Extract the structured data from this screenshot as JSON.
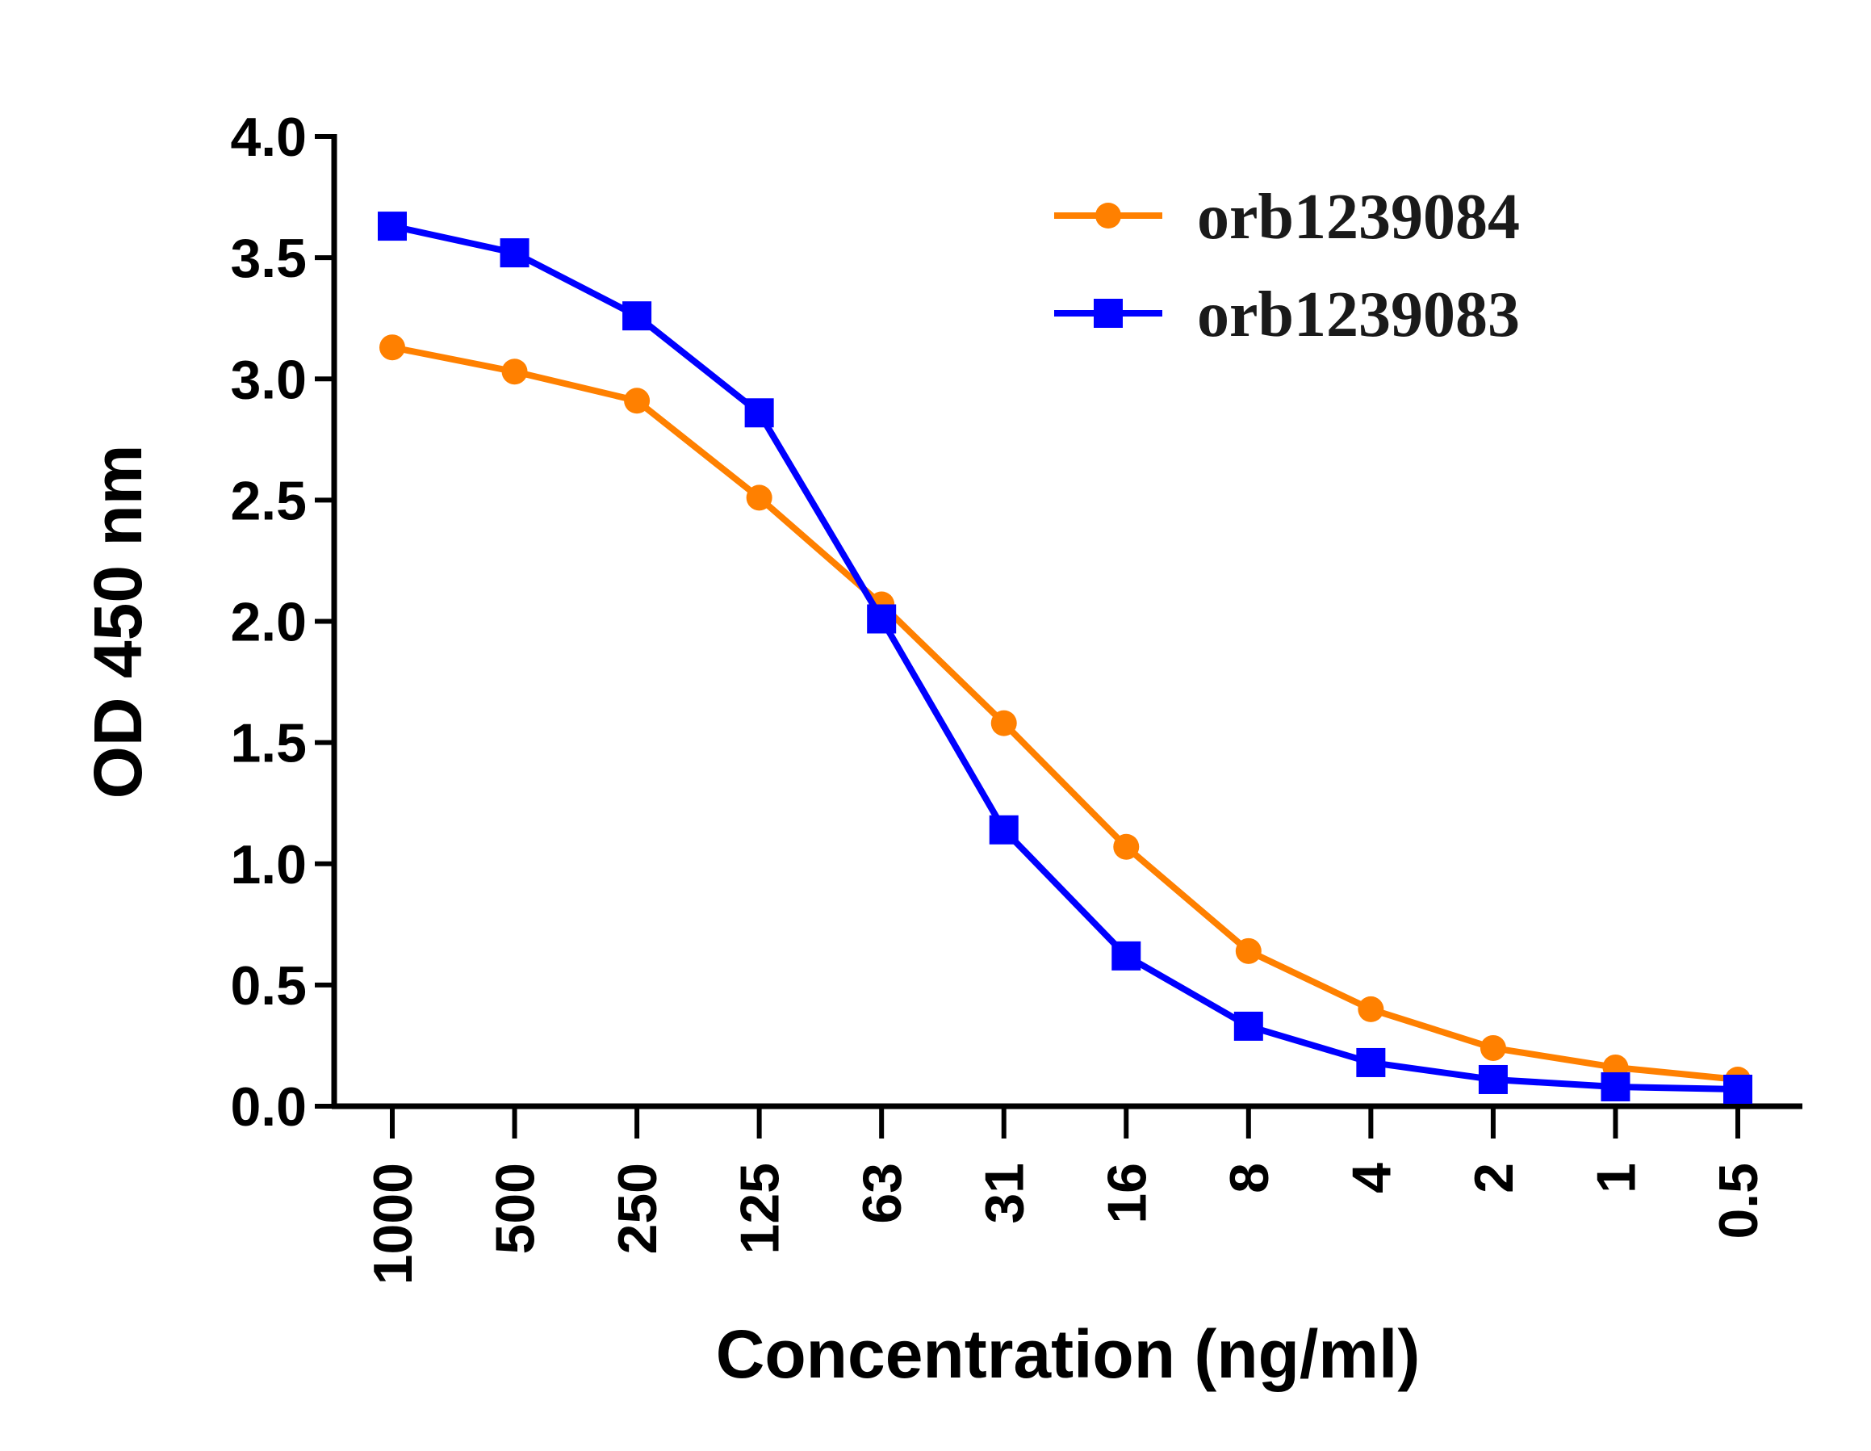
{
  "chart_data": {
    "type": "line",
    "xlabel": "Concentration (ng/ml)",
    "ylabel": "OD 450 nm",
    "categories": [
      "1000",
      "500",
      "250",
      "125",
      "63",
      "31",
      "16",
      "8",
      "4",
      "2",
      "1",
      "0.5"
    ],
    "ylim": [
      0,
      4.0
    ],
    "yticks": [
      "0.0",
      "0.5",
      "1.0",
      "1.5",
      "2.0",
      "2.5",
      "3.0",
      "3.5",
      "4.0"
    ],
    "grid": false,
    "legend_position": "top-right",
    "series": [
      {
        "name": "orb1239084",
        "color": "#ff8000",
        "marker": "circle",
        "values": [
          3.13,
          3.03,
          2.91,
          2.51,
          2.07,
          1.58,
          1.07,
          0.64,
          0.4,
          0.24,
          0.16,
          0.11
        ]
      },
      {
        "name": "orb1239083",
        "color": "#0000ff",
        "marker": "square",
        "values": [
          3.63,
          3.52,
          3.26,
          2.86,
          2.01,
          1.14,
          0.62,
          0.33,
          0.18,
          0.11,
          0.08,
          0.07
        ]
      }
    ]
  }
}
